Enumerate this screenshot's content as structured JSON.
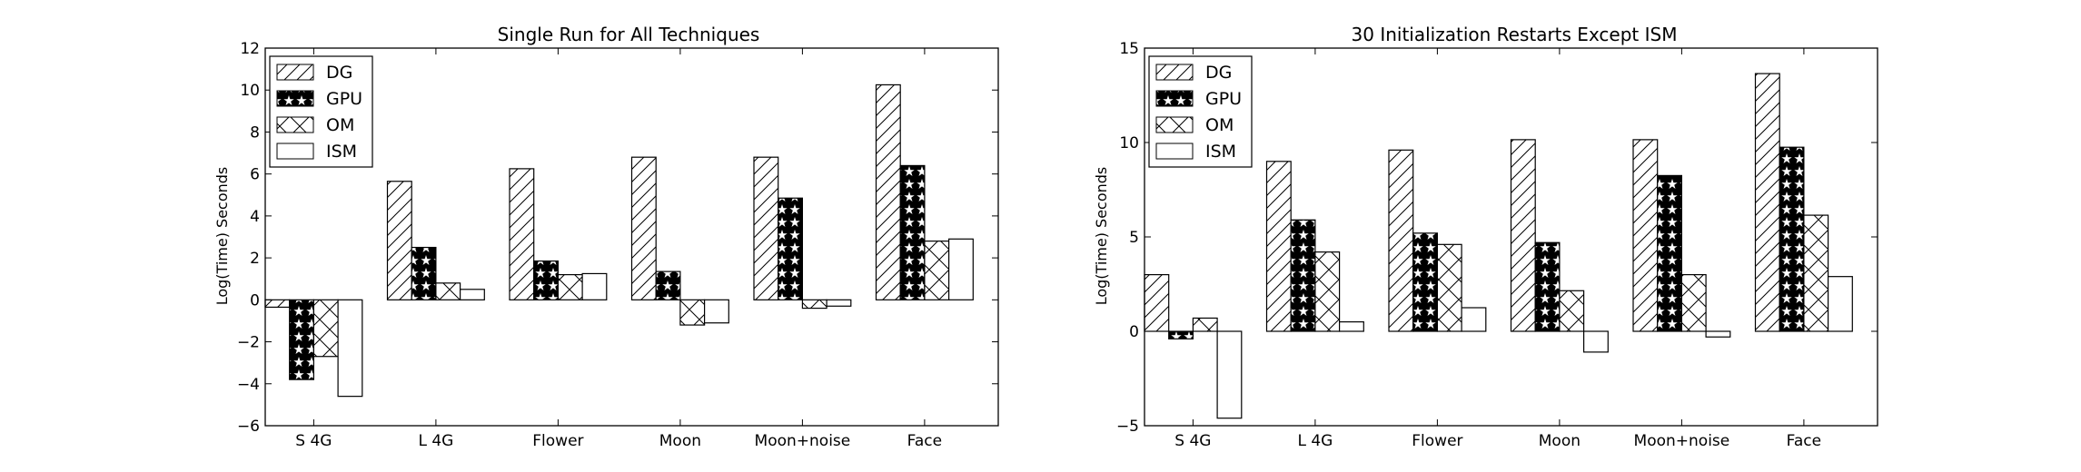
{
  "chart_data": [
    {
      "type": "bar",
      "title": "Single Run for All Techniques",
      "ylabel": "Log(Time) Seconds",
      "xlabel": "",
      "ylim": [
        -6,
        12
      ],
      "yticks": [
        -6,
        -4,
        -2,
        0,
        2,
        4,
        6,
        8,
        10,
        12
      ],
      "ytick_labels": [
        "−6",
        "−4",
        "−2",
        "0",
        "2",
        "4",
        "6",
        "8",
        "10",
        "12"
      ],
      "categories": [
        "S 4G",
        "L 4G",
        "Flower",
        "Moon",
        "Moon+noise",
        "Face"
      ],
      "grid": false,
      "legend_position": "top-left",
      "series": [
        {
          "name": "DG",
          "hatch": "diagonal",
          "values": [
            -0.35,
            5.65,
            6.25,
            6.8,
            6.8,
            10.25
          ]
        },
        {
          "name": "GPU",
          "hatch": "stars",
          "values": [
            -3.8,
            2.5,
            1.85,
            1.35,
            4.85,
            6.4
          ]
        },
        {
          "name": "OM",
          "hatch": "cross",
          "values": [
            -2.7,
            0.8,
            1.2,
            -1.2,
            -0.4,
            2.8
          ]
        },
        {
          "name": "ISM",
          "hatch": "none",
          "values": [
            -4.6,
            0.5,
            1.25,
            -1.1,
            -0.3,
            2.9
          ]
        }
      ]
    },
    {
      "type": "bar",
      "title": "30 Initialization Restarts Except ISM",
      "ylabel": "Log(Time) Seconds",
      "xlabel": "",
      "ylim": [
        -5,
        15
      ],
      "yticks": [
        -5,
        0,
        5,
        10,
        15
      ],
      "ytick_labels": [
        "−5",
        "0",
        "5",
        "10",
        "15"
      ],
      "categories": [
        "S 4G",
        "L 4G",
        "Flower",
        "Moon",
        "Moon+noise",
        "Face"
      ],
      "grid": false,
      "legend_position": "top-left",
      "series": [
        {
          "name": "DG",
          "hatch": "diagonal",
          "values": [
            3.0,
            9.0,
            9.6,
            10.15,
            10.15,
            13.65
          ]
        },
        {
          "name": "GPU",
          "hatch": "stars",
          "values": [
            -0.4,
            5.9,
            5.2,
            4.7,
            8.25,
            9.75
          ]
        },
        {
          "name": "OM",
          "hatch": "cross",
          "values": [
            0.7,
            4.2,
            4.6,
            2.15,
            3.0,
            6.15
          ]
        },
        {
          "name": "ISM",
          "hatch": "none",
          "values": [
            -4.6,
            0.5,
            1.25,
            -1.1,
            -0.3,
            2.9
          ]
        }
      ]
    }
  ]
}
